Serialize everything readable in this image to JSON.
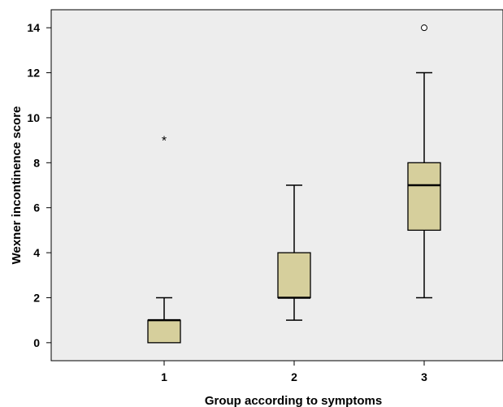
{
  "chart_data": {
    "type": "boxplot",
    "xlabel": "Group according to symptoms",
    "ylabel": "Wexner incontinence score",
    "ylim": [
      -0.8,
      14.8
    ],
    "yticks": [
      0,
      2,
      4,
      6,
      8,
      10,
      12,
      14
    ],
    "categories": [
      "1",
      "2",
      "3"
    ],
    "boxes": [
      {
        "category": "1",
        "min": 0,
        "q1": 0,
        "median": 1,
        "q3": 1,
        "max": 2,
        "outliers": [],
        "extremes": [
          9
        ]
      },
      {
        "category": "2",
        "min": 1,
        "q1": 2,
        "median": 2,
        "q3": 4,
        "max": 7,
        "outliers": [],
        "extremes": []
      },
      {
        "category": "3",
        "min": 2,
        "q1": 5,
        "median": 7,
        "q3": 8,
        "max": 12,
        "outliers": [
          14
        ],
        "extremes": []
      }
    ],
    "colors": {
      "plot_background": "#ededed",
      "box_fill": "#d6cf9c",
      "line": "#000000"
    },
    "grid": false,
    "legend": "none"
  }
}
